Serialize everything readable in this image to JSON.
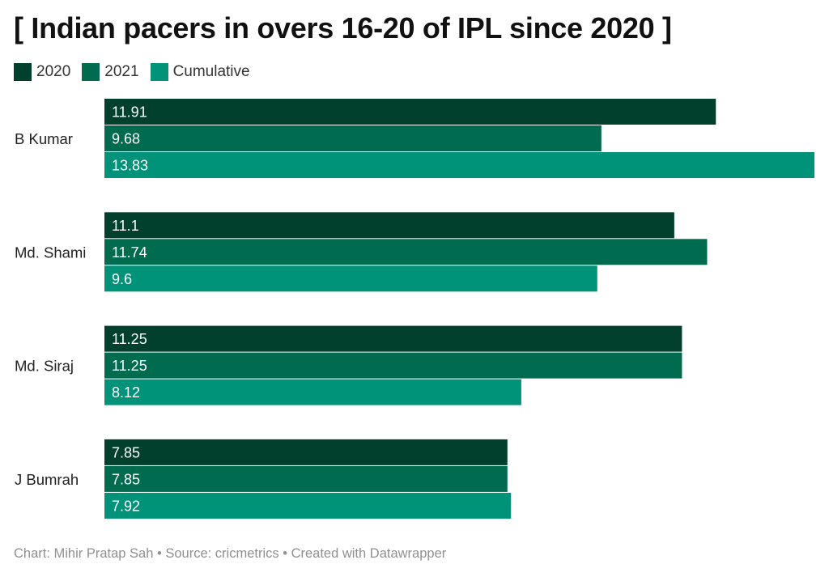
{
  "header": {
    "title": "[ Indian pacers in overs 16-20 of IPL since 2020 ]"
  },
  "footer": {
    "credit": "Chart: Mihir Pratap Sah • Source: cricmetrics • Created with Datawrapper"
  },
  "colors": {
    "series_2020": "#00402c",
    "series_2021": "#006b4f",
    "series_cumulative": "#00937a",
    "bar_label_text": "#ffffff"
  },
  "chart_data": {
    "type": "bar",
    "orientation": "horizontal",
    "grouped": true,
    "title": "[ Indian pacers in overs 16-20 of IPL since 2020 ]",
    "xlabel": "",
    "ylabel": "",
    "categories": [
      "B Kumar",
      "Md. Shami",
      "Md. Siraj",
      "J Bumrah"
    ],
    "series": [
      {
        "name": "2020",
        "values": [
          11.91,
          11.1,
          11.25,
          7.85
        ]
      },
      {
        "name": "2021",
        "values": [
          9.68,
          11.74,
          11.25,
          7.85
        ]
      },
      {
        "name": "Cumulative",
        "values": [
          13.83,
          9.6,
          8.12,
          7.92
        ]
      }
    ],
    "value_labels": [
      [
        "11.91",
        "11.1",
        "11.25",
        "7.85"
      ],
      [
        "9.68",
        "11.74",
        "11.25",
        "7.85"
      ],
      [
        "13.83",
        "9.6",
        "8.12",
        "7.92"
      ]
    ],
    "xlim": [
      0,
      13.83
    ],
    "grid": false,
    "legend_position": "top-left",
    "data_labels": "inside-bar-left"
  }
}
